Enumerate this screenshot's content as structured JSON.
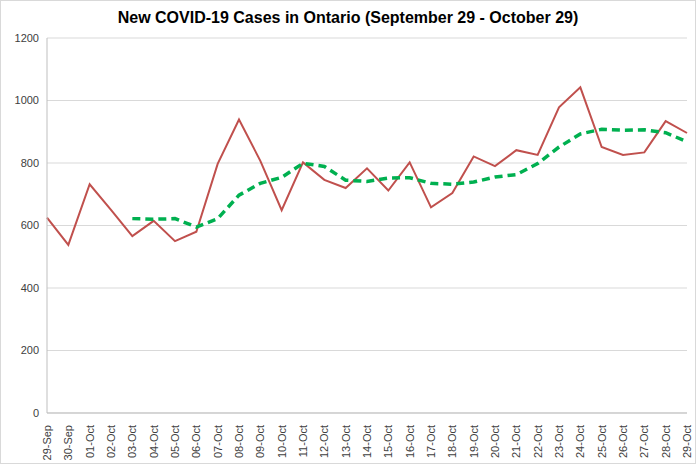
{
  "chart_data": {
    "type": "line",
    "title": "New COVID-19 Cases in Ontario (September 29 - October 29)",
    "categories": [
      "29-Sep",
      "30-Sep",
      "01-Oct",
      "02-Oct",
      "03-Oct",
      "04-Oct",
      "05-Oct",
      "06-Oct",
      "07-Oct",
      "08-Oct",
      "09-Oct",
      "10-Oct",
      "11-Oct",
      "12-Oct",
      "13-Oct",
      "14-Oct",
      "15-Oct",
      "16-Oct",
      "17-Oct",
      "18-Oct",
      "19-Oct",
      "20-Oct",
      "21-Oct",
      "22-Oct",
      "23-Oct",
      "24-Oct",
      "25-Oct",
      "26-Oct",
      "27-Oct",
      "28-Oct",
      "29-Oct"
    ],
    "series": [
      {
        "color": "#c0504d",
        "line_style": "solid",
        "values": [
          625,
          538,
          732,
          650,
          566,
          615,
          550,
          580,
          797,
          939,
          807,
          649,
          802,
          746,
          720,
          783,
          712,
          802,
          658,
          704,
          821,
          790,
          841,
          826,
          978,
          1042,
          851,
          826,
          834,
          934,
          896
        ]
      },
      {
        "color": "#00b050",
        "line_style": "dashed",
        "values": [
          null,
          null,
          null,
          null,
          622,
          620,
          622,
          595,
          622,
          697,
          735,
          754,
          799,
          789,
          745,
          741,
          752,
          753,
          735,
          732,
          739,
          755,
          763,
          798,
          851,
          893,
          908,
          905,
          906,
          897,
          868
        ]
      }
    ],
    "ylim": [
      0,
      1200
    ],
    "yticks": [
      0,
      200,
      400,
      600,
      800,
      1000,
      1200
    ],
    "grid": true
  }
}
